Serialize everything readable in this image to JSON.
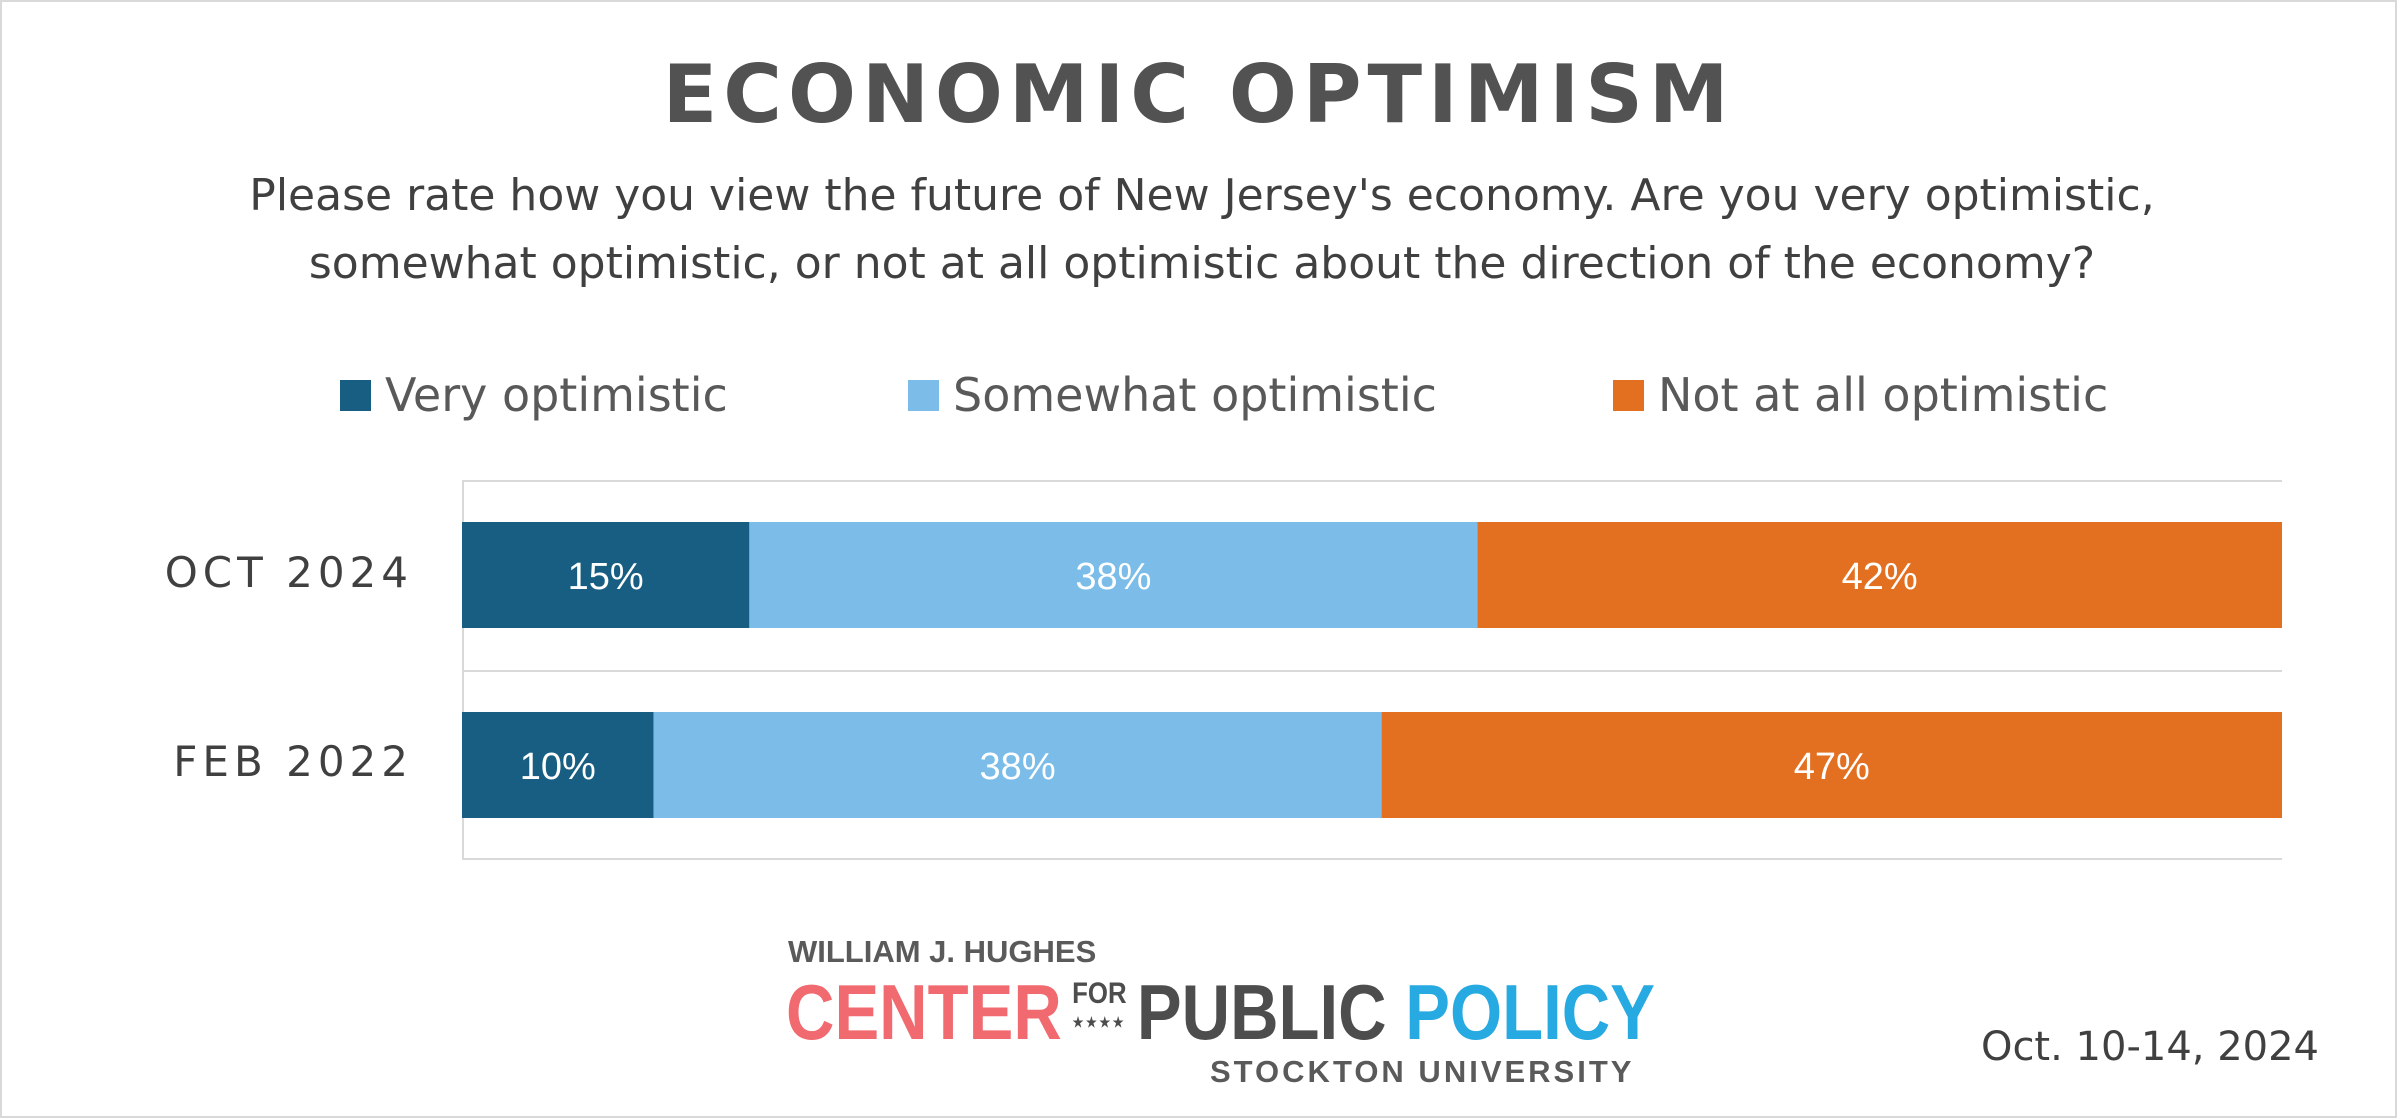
{
  "title": "ECONOMIC OPTIMISM",
  "subtitle_line1": "Please rate how you view the future of New Jersey's economy. Are you very optimistic,",
  "subtitle_line2": "somewhat optimistic, or not at all optimistic about the direction of the economy?",
  "legend": [
    {
      "label": "Very optimistic",
      "color": "#175e82"
    },
    {
      "label": "Somewhat optimistic",
      "color": "#7bbde8"
    },
    {
      "label": "Not at all optimistic",
      "color": "#e36f20"
    }
  ],
  "chart_data": {
    "type": "bar",
    "orientation": "horizontal",
    "stacked": true,
    "title": "ECONOMIC OPTIMISM",
    "categories": [
      "OCT 2024",
      "FEB 2022"
    ],
    "series": [
      {
        "name": "Very optimistic",
        "values": [
          15,
          10
        ],
        "labels": [
          "15%",
          "10%"
        ],
        "color": "#175e82"
      },
      {
        "name": "Somewhat optimistic",
        "values": [
          38,
          38
        ],
        "labels": [
          "38%",
          "38%"
        ],
        "color": "#7bbde8"
      },
      {
        "name": "Not at all optimistic",
        "values": [
          42,
          47
        ],
        "labels": [
          "42%",
          "47%"
        ],
        "color": "#e36f20"
      }
    ],
    "xlim": [
      0,
      95
    ],
    "legend_position": "top",
    "grid": "horizontal separators"
  },
  "logo": {
    "top_text": "WILLIAM J. HUGHES",
    "center": "CENTER",
    "for": "FOR",
    "stars": "★★★★",
    "public": "PUBLIC",
    "policy": "POLICY",
    "bottom_text": "STOCKTON UNIVERSITY"
  },
  "date": "Oct. 10-14, 2024"
}
